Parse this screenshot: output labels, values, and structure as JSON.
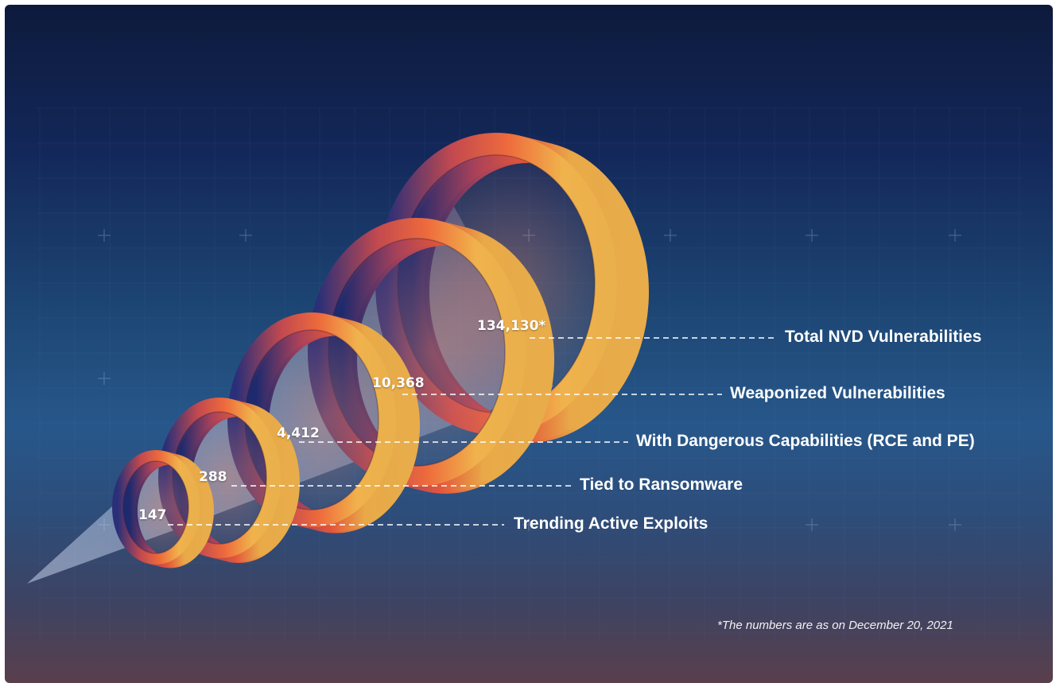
{
  "chart_data": {
    "type": "funnel",
    "title": "",
    "categories": [
      "Trending Active Exploits",
      "Tied to Ransomware",
      "With Dangerous Capabilities (RCE and PE)",
      "Weaponized Vulnerabilities",
      "Total NVD Vulnerabilities"
    ],
    "values": [
      147,
      288,
      4412,
      10368,
      134130
    ],
    "value_labels": [
      "147",
      "288",
      "4,412",
      "10,368",
      "134,130*"
    ],
    "footnote": "*The numbers are as on December 20, 2021",
    "colors": {
      "ring_start": "#1e2a6e",
      "ring_mid": "#e3573a",
      "ring_end": "#e9a948",
      "label": "#ffffff"
    }
  }
}
